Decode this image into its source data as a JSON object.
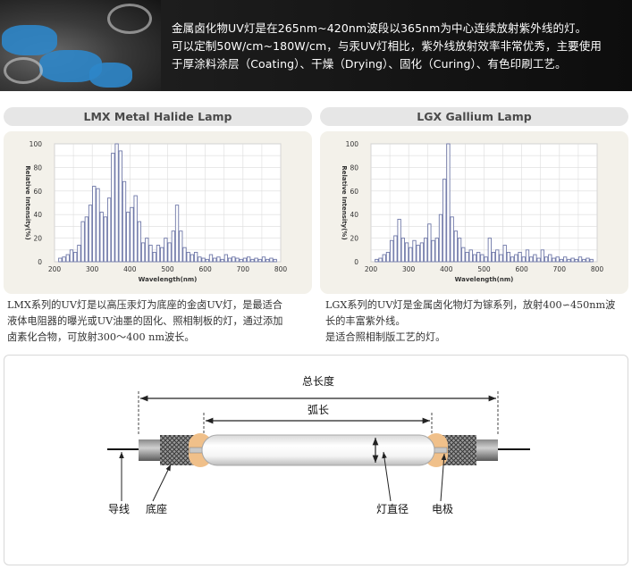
{
  "banner": {
    "lines": [
      "金属卤化物UV灯是在265nm~420nm波段以365nm为中心连续放射紫外线的灯。",
      "可以定制50W/cm~180W/cm，与汞UV灯相比，紫外线放射效率非常优秀，主要使用",
      "于厚涂料涂层（Coating）、干燥（Drying）、固化（Curing）、有色印刷工艺。"
    ]
  },
  "panels": [
    {
      "title": "LMX Metal Halide Lamp",
      "caption": [
        "LMX系列的UV灯是以高压汞灯为底座的金卤UV灯，是最适合",
        "液体电阻器的曝光或UV油墨的固化、照相制板的灯，通过添加",
        "卤素化合物，可放射300～400 nm波长。"
      ]
    },
    {
      "title": "LGX Gallium Lamp",
      "caption": [
        "LGX系列的UV灯是金属卤化物灯为镓系列，放射400∽450nm波",
        "长的丰富紫外线。",
        "是适合照相制版工艺的灯。"
      ]
    }
  ],
  "chart_data": [
    {
      "type": "bar",
      "ylabel": "Relative Intensity(%)",
      "xlabel": "Wavelength(nm)",
      "xlim": [
        200,
        800
      ],
      "ylim": [
        0,
        100
      ],
      "xticks": [
        200,
        300,
        400,
        500,
        600,
        700,
        800
      ],
      "yticks": [
        0,
        20,
        40,
        60,
        80,
        100
      ],
      "grid": true,
      "bar_width": 10,
      "x": [
        215,
        225,
        235,
        245,
        255,
        265,
        275,
        285,
        295,
        305,
        315,
        325,
        335,
        345,
        355,
        365,
        375,
        385,
        395,
        405,
        415,
        425,
        435,
        445,
        455,
        465,
        475,
        485,
        495,
        505,
        515,
        525,
        535,
        545,
        555,
        565,
        575,
        585,
        595,
        605,
        615,
        625,
        635,
        645,
        655,
        665,
        675,
        685,
        695,
        705,
        715,
        725,
        735,
        745,
        755,
        765,
        775,
        785
      ],
      "values": [
        3,
        4,
        6,
        10,
        8,
        14,
        34,
        38,
        48,
        64,
        62,
        42,
        38,
        54,
        92,
        100,
        94,
        68,
        42,
        46,
        56,
        34,
        16,
        20,
        14,
        8,
        14,
        12,
        20,
        16,
        26,
        48,
        26,
        12,
        8,
        6,
        8,
        4,
        3,
        2,
        6,
        3,
        4,
        2,
        6,
        3,
        4,
        3,
        2,
        3,
        4,
        2,
        3,
        2,
        4,
        2,
        3,
        2
      ]
    },
    {
      "type": "bar",
      "ylabel": "Relative Intensity(%)",
      "xlabel": "Wavelength(nm)",
      "xlim": [
        200,
        800
      ],
      "ylim": [
        0,
        100
      ],
      "xticks": [
        200,
        300,
        400,
        500,
        600,
        700,
        800
      ],
      "yticks": [
        0,
        20,
        40,
        60,
        80,
        100
      ],
      "grid": true,
      "bar_width": 10,
      "x": [
        215,
        225,
        235,
        245,
        255,
        265,
        275,
        285,
        295,
        305,
        315,
        325,
        335,
        345,
        355,
        365,
        375,
        385,
        395,
        405,
        415,
        425,
        435,
        445,
        455,
        465,
        475,
        485,
        495,
        505,
        515,
        525,
        535,
        545,
        555,
        565,
        575,
        585,
        595,
        605,
        615,
        625,
        635,
        645,
        655,
        665,
        675,
        685,
        695,
        705,
        715,
        725,
        735,
        745,
        755,
        765,
        775,
        785
      ],
      "values": [
        2,
        3,
        6,
        8,
        18,
        22,
        36,
        20,
        16,
        12,
        18,
        14,
        16,
        20,
        32,
        18,
        20,
        40,
        70,
        100,
        38,
        26,
        20,
        12,
        8,
        10,
        6,
        8,
        6,
        4,
        20,
        8,
        10,
        6,
        14,
        8,
        4,
        6,
        8,
        4,
        10,
        4,
        6,
        3,
        10,
        4,
        6,
        3,
        4,
        2,
        4,
        2,
        3,
        2,
        4,
        2,
        3,
        2
      ]
    }
  ],
  "diagram": {
    "labels": {
      "total_length": "总长度",
      "arc_length": "弧长",
      "lead_wire": "导线",
      "base": "底座",
      "lamp_diameter": "灯直径",
      "electrode": "电极"
    }
  }
}
